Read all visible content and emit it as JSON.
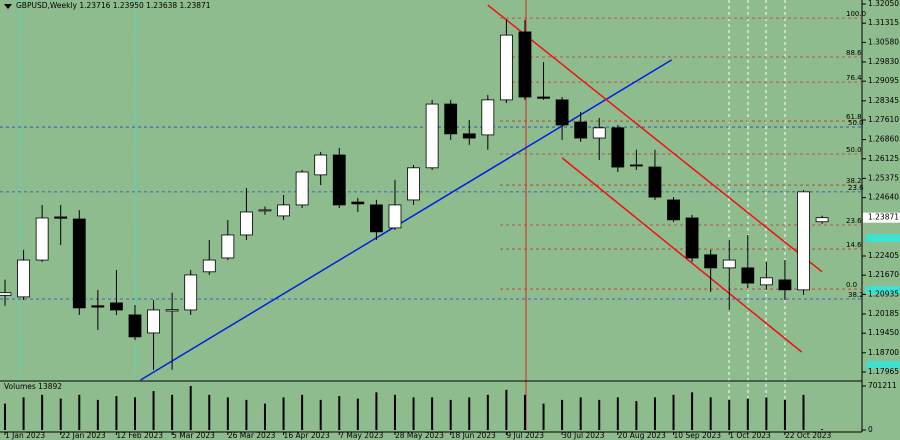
{
  "chart_data": {
    "type": "candlestick",
    "title": "GBPUSD,Weekly  1.23716 1.23950 1.23638 1.23871",
    "categories": [
      "1 Jan 2023",
      null,
      null,
      "22 Jan 2023",
      null,
      null,
      "12 Feb 2023",
      null,
      null,
      "5 Mar 2023",
      null,
      null,
      "26 Mar 2023",
      null,
      null,
      "16 Apr 2023",
      null,
      null,
      "7 May 2023",
      null,
      null,
      "28 May 2023",
      null,
      null,
      "18 Jun 2023",
      null,
      null,
      "9 Jul 2023",
      null,
      null,
      "30 Jul 2023",
      null,
      null,
      "20 Aug 2023",
      null,
      null,
      "10 Sep 2023",
      null,
      null,
      "1 Oct 2023",
      null,
      null,
      "22 Oct 2023",
      null,
      null
    ],
    "open": [
      1.209,
      1.2084,
      1.2225,
      1.239,
      1.2382,
      1.205,
      1.2061,
      1.2015,
      1.1946,
      1.203,
      1.2034,
      1.218,
      1.2233,
      1.2321,
      1.2413,
      1.2394,
      1.2436,
      1.2551,
      1.2627,
      1.2447,
      1.2436,
      1.2348,
      1.2455,
      1.2578,
      1.2822,
      1.2708,
      1.2704,
      1.2838,
      1.3098,
      1.2849,
      1.2838,
      1.2753,
      1.2692,
      1.2731,
      1.2589,
      1.2581,
      1.2455,
      1.2386,
      1.2245,
      1.2195,
      1.2195,
      1.213,
      1.2149,
      1.2111,
      1.23716
    ],
    "high": [
      1.215,
      1.2264,
      1.2436,
      1.2436,
      1.2416,
      1.211,
      1.2187,
      1.2053,
      1.2072,
      1.21,
      1.2187,
      1.2302,
      1.2378,
      1.2501,
      1.243,
      1.2474,
      1.257,
      1.2639,
      1.2654,
      1.2463,
      1.2455,
      1.2532,
      1.2589,
      1.2838,
      1.2838,
      1.2761,
      1.2857,
      1.3144,
      1.3144,
      1.2983,
      1.2849,
      1.2792,
      1.2769,
      1.2742,
      1.2647,
      1.2647,
      1.2466,
      1.2398,
      1.2264,
      1.2302,
      1.2321,
      1.2218,
      1.2225,
      1.2493,
      1.2395
    ],
    "low": [
      1.205,
      1.2072,
      1.2218,
      1.2283,
      1.2015,
      1.1957,
      1.2015,
      1.1919,
      1.1805,
      1.1805,
      1.2015,
      1.2168,
      1.2225,
      1.2302,
      1.2398,
      1.2378,
      1.2424,
      1.2512,
      1.2424,
      1.2409,
      1.2302,
      1.234,
      1.2436,
      1.257,
      1.2685,
      1.2666,
      1.2647,
      1.2826,
      1.2838,
      1.2838,
      1.2685,
      1.2677,
      1.2608,
      1.2562,
      1.257,
      1.2455,
      1.2371,
      1.2218,
      1.2103,
      1.2034,
      1.2118,
      1.2111,
      1.2072,
      1.2092,
      1.23638
    ],
    "close": [
      1.21,
      1.2225,
      1.2386,
      1.2385,
      1.2042,
      1.2045,
      1.2034,
      1.1931,
      1.2034,
      1.2035,
      1.2168,
      1.2225,
      1.2321,
      1.2409,
      1.2417,
      1.2436,
      1.2562,
      1.2627,
      1.2436,
      1.244,
      1.2333,
      1.2436,
      1.2578,
      1.2822,
      1.2708,
      1.2692,
      1.2838,
      1.3086,
      1.2849,
      1.2844,
      1.2742,
      1.2692,
      1.2731,
      1.2581,
      1.2585,
      1.2466,
      1.2379,
      1.2233,
      1.2195,
      1.2225,
      1.2137,
      1.2157,
      1.2111,
      1.2486,
      1.23871
    ],
    "up_color": "#ffffff",
    "down_color": "#000000",
    "ylim": [
      1.17659,
      1.32203
    ],
    "yticks": [
      {
        "value": 1.3205,
        "label": "1.32050"
      },
      1.31315,
      {
        "value": 1.3058,
        "label": "1.30580"
      },
      {
        "value": 1.2983,
        "label": "1.29830"
      },
      1.29095,
      1.28345,
      {
        "value": 1.2761,
        "label": "1.27610"
      },
      {
        "value": 1.2686,
        "label": "1.26860"
      },
      1.26125,
      1.25375,
      {
        "value": 1.2464,
        "label": "1.24640"
      },
      1.22405,
      {
        "value": 1.2167,
        "label": "1.21670"
      },
      1.20935,
      1.20185,
      {
        "value": 1.1945,
        "label": "1.19450"
      },
      {
        "value": 1.187,
        "label": "1.18700"
      },
      1.17965
    ],
    "last_price": 1.23871,
    "fib_levels": [
      {
        "label": "100.0",
        "value": 1.3151,
        "color": "#c0392b"
      },
      {
        "label": "88.6",
        "value": 1.3002,
        "color": "#c0392b"
      },
      {
        "label": "76.4",
        "value": 1.2906,
        "color": "#c0392b"
      },
      {
        "label": "61.8",
        "value": 1.2757,
        "color": "#c0392b"
      },
      {
        "label": "50.0",
        "value": 1.2631,
        "color": "#c0392b"
      },
      {
        "label": "38.2",
        "value": 1.2512,
        "color": "#c0392b"
      },
      {
        "label": "23.6",
        "value": 1.2359,
        "color": "#c0392b"
      },
      {
        "label": "14.6",
        "value": 1.2267,
        "color": "#c0392b"
      },
      {
        "label": "0.0",
        "value": 1.2114,
        "color": "#c0392b"
      }
    ],
    "blue_levels": [
      {
        "label": "50.0",
        "value": 1.2734,
        "color": "#2244cc"
      },
      {
        "label": "23.6",
        "value": 1.2486,
        "color": "#2244cc"
      },
      {
        "label": "38.2",
        "value": 1.2076,
        "color": "#2244cc"
      }
    ],
    "trendlines": [
      {
        "color": "#0022dd",
        "x": [
          7.3,
          35.9
        ],
        "y": [
          1.1766,
          1.2991
        ]
      },
      {
        "color": "#ee1111",
        "x": [
          26.0,
          44.0
        ],
        "y": [
          1.3201,
          1.218
        ]
      },
      {
        "color": "#ee1111",
        "x": [
          30.0,
          42.9
        ],
        "y": [
          1.2616,
          1.1873
        ]
      }
    ],
    "volume_label": "Volumes 13892",
    "volumes": [
      420000,
      520000,
      560000,
      500000,
      560000,
      480000,
      540000,
      520000,
      620000,
      560000,
      701211,
      560000,
      520000,
      480000,
      420000,
      520000,
      560000,
      480000,
      540000,
      500000,
      600000,
      560000,
      520000,
      520000,
      480000,
      520000,
      560000,
      640000,
      560000,
      420000,
      480000,
      520000,
      480000,
      520000,
      460000,
      520000,
      560000,
      600000,
      520000,
      480000,
      500000,
      520000,
      480000,
      560000,
      13892
    ],
    "vlim": [
      0,
      701211
    ],
    "vticks": [
      701211,
      0
    ]
  }
}
